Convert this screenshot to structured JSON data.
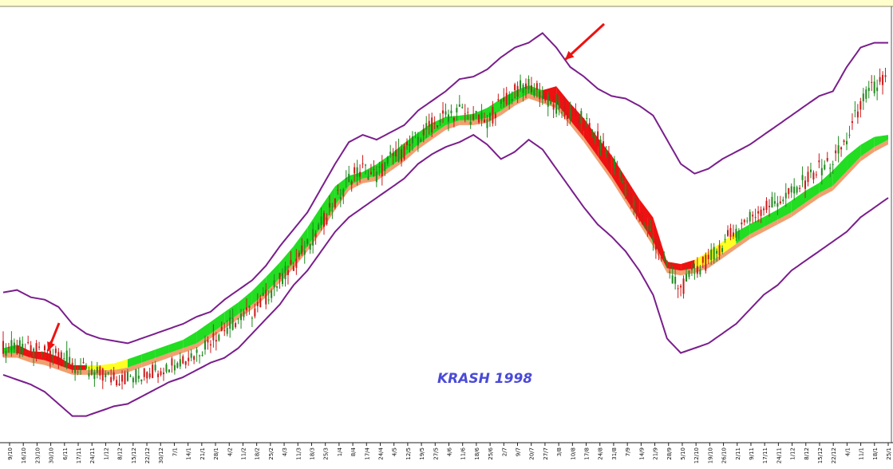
{
  "chart_data": {
    "type": "candlestick",
    "title": "",
    "annotation": "KRASH 1998",
    "xlabel": "",
    "ylabel": "",
    "x_tick_labels": [
      "9/10",
      "16/10",
      "23/10",
      "30/10",
      "6/11",
      "17/11",
      "24/11",
      "1/12",
      "8/12",
      "15/12",
      "22/12",
      "30/12",
      "7/1",
      "14/1",
      "21/1",
      "28/1",
      "4/2",
      "11/2",
      "18/2",
      "25/2",
      "4/3",
      "11/3",
      "18/3",
      "25/3",
      "1/4",
      "8/4",
      "17/4",
      "24/4",
      "4/5",
      "12/5",
      "19/5",
      "27/5",
      "4/6",
      "11/6",
      "18/6",
      "25/6",
      "2/7",
      "9/7",
      "20/7",
      "27/7",
      "3/8",
      "10/8",
      "17/8",
      "24/8",
      "31/8",
      "7/9",
      "14/9",
      "21/9",
      "28/9",
      "5/10",
      "12/10",
      "19/10",
      "26/10",
      "2/11",
      "9/11",
      "17/11",
      "24/11",
      "1/12",
      "8/12",
      "15/12",
      "22/12",
      "4/1",
      "11/1",
      "18/1",
      "25/1"
    ],
    "close": [
      64,
      64,
      63,
      62,
      62,
      58,
      54,
      53,
      51,
      52,
      53,
      55,
      57,
      60,
      62,
      68,
      72,
      76,
      79,
      85,
      92,
      99,
      106,
      115,
      124,
      134,
      138,
      135,
      142,
      145,
      151,
      156,
      160,
      162,
      159,
      157,
      165,
      170,
      173,
      168,
      163,
      160,
      158,
      150,
      142,
      130,
      119,
      110,
      97,
      88,
      96,
      100,
      107,
      113,
      118,
      122,
      125,
      128,
      133,
      138,
      141,
      150,
      165,
      172,
      175
    ],
    "series": [
      {
        "name": "",
        "role": "upper-band",
        "values": [
          87,
          88,
          85,
          84,
          81,
          74,
          70,
          68,
          67,
          66,
          68,
          70,
          72,
          74,
          77,
          79,
          84,
          88,
          92,
          98,
          106,
          113,
          120,
          130,
          140,
          149,
          152,
          150,
          153,
          156,
          162,
          166,
          170,
          175,
          176,
          179,
          184,
          188,
          190,
          194,
          188,
          180,
          176,
          171,
          168,
          167,
          164,
          160,
          150,
          140,
          136,
          138,
          142,
          145,
          148,
          152,
          156,
          160,
          164,
          168,
          170,
          180,
          188,
          190,
          190
        ]
      },
      {
        "name": "",
        "role": "lower-band",
        "values": [
          53,
          51,
          49,
          46,
          41,
          36,
          36,
          38,
          40,
          41,
          44,
          47,
          50,
          52,
          55,
          58,
          60,
          64,
          70,
          76,
          82,
          90,
          96,
          104,
          112,
          118,
          122,
          126,
          130,
          134,
          140,
          144,
          147,
          149,
          152,
          148,
          142,
          145,
          150,
          146,
          138,
          130,
          122,
          115,
          110,
          104,
          96,
          86,
          68,
          62,
          64,
          66,
          70,
          74,
          80,
          86,
          90,
          96,
          100,
          104,
          108,
          112,
          118,
          122,
          126
        ]
      },
      {
        "name": "",
        "role": "ribbon",
        "values": [
          62,
          62,
          60,
          59,
          57,
          55,
          55,
          55,
          55,
          56,
          58,
          60,
          62,
          64,
          66,
          70,
          74,
          78,
          82,
          87,
          93,
          99,
          106,
          114,
          123,
          131,
          134,
          135,
          139,
          143,
          148,
          152,
          156,
          158,
          158,
          159,
          162,
          166,
          169,
          167,
          165,
          158,
          151,
          143,
          135,
          126,
          117,
          108,
          97,
          96,
          97,
          99,
          103,
          107,
          111,
          114,
          117,
          120,
          124,
          128,
          131,
          137,
          143,
          147,
          150
        ]
      }
    ],
    "ribbon_colors": {
      "rising": "#22dd22",
      "falling": "#ee1111",
      "recovering": "#ffff22",
      "base": "#f0a070"
    },
    "band_color": "#7a1e8c",
    "arrow_color": "#ee1111",
    "y_range": [
      25,
      205
    ],
    "grid": false,
    "legend": "none"
  },
  "colors": {
    "bullish_candle": "#1f8a1f",
    "bearish_candle": "#cc1a1a",
    "annotation": "#4a4ad8",
    "top_strip": "#ffffcc"
  }
}
